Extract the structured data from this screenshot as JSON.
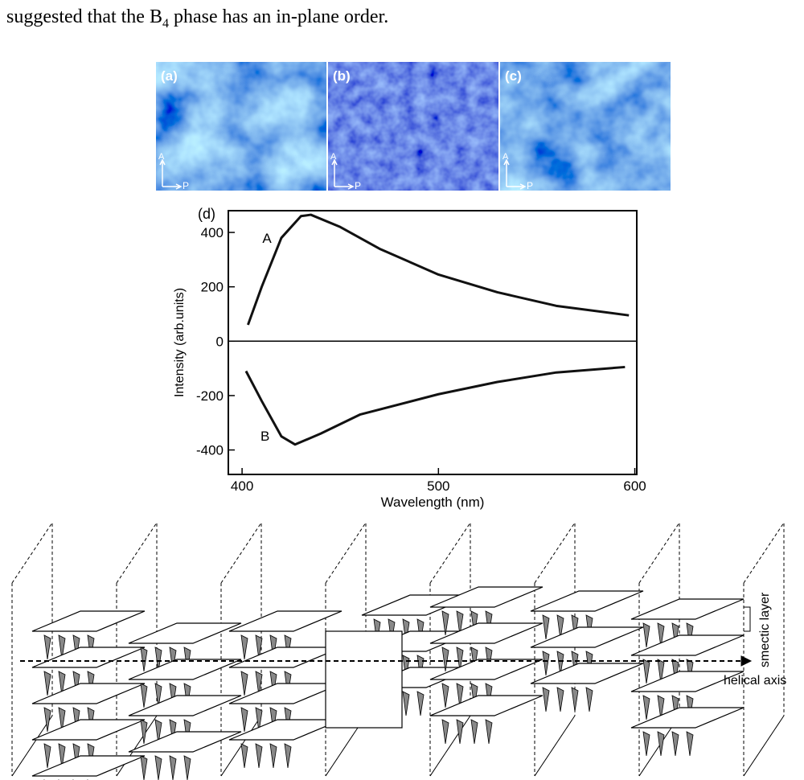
{
  "text": {
    "before": "suggested that the B",
    "sub": "4",
    "after": " phase has an in-plane order."
  },
  "micrographs": [
    {
      "label": "(a)",
      "analyzer": "A",
      "polarizer": "P"
    },
    {
      "label": "(b)",
      "analyzer": "A",
      "polarizer": "P"
    },
    {
      "label": "(c)",
      "analyzer": "A",
      "polarizer": "P"
    }
  ],
  "chart_data": {
    "type": "line",
    "panel": "(d)",
    "xlabel": "Wavelength (nm)",
    "ylabel": "Intensity (arb.units)",
    "xlim": [
      393,
      601
    ],
    "ylim": [
      -490,
      480
    ],
    "xticks": [
      400,
      500,
      600
    ],
    "yticks": [
      -400,
      -200,
      0,
      200,
      400
    ],
    "zero_line": true,
    "series": [
      {
        "name": "A",
        "color": "#111111",
        "x": [
          403,
          410,
          420,
          430,
          435,
          450,
          470,
          500,
          530,
          560,
          597
        ],
        "values": [
          60,
          200,
          380,
          460,
          465,
          420,
          340,
          245,
          180,
          130,
          95
        ]
      },
      {
        "name": "B",
        "color": "#111111",
        "x": [
          402,
          410,
          420,
          427,
          440,
          460,
          500,
          530,
          560,
          595
        ],
        "values": [
          -110,
          -220,
          -350,
          -380,
          -340,
          -270,
          -195,
          -150,
          -115,
          -95
        ]
      }
    ]
  },
  "diagram": {
    "labels": [
      "smectic layer",
      "helical axis"
    ]
  }
}
